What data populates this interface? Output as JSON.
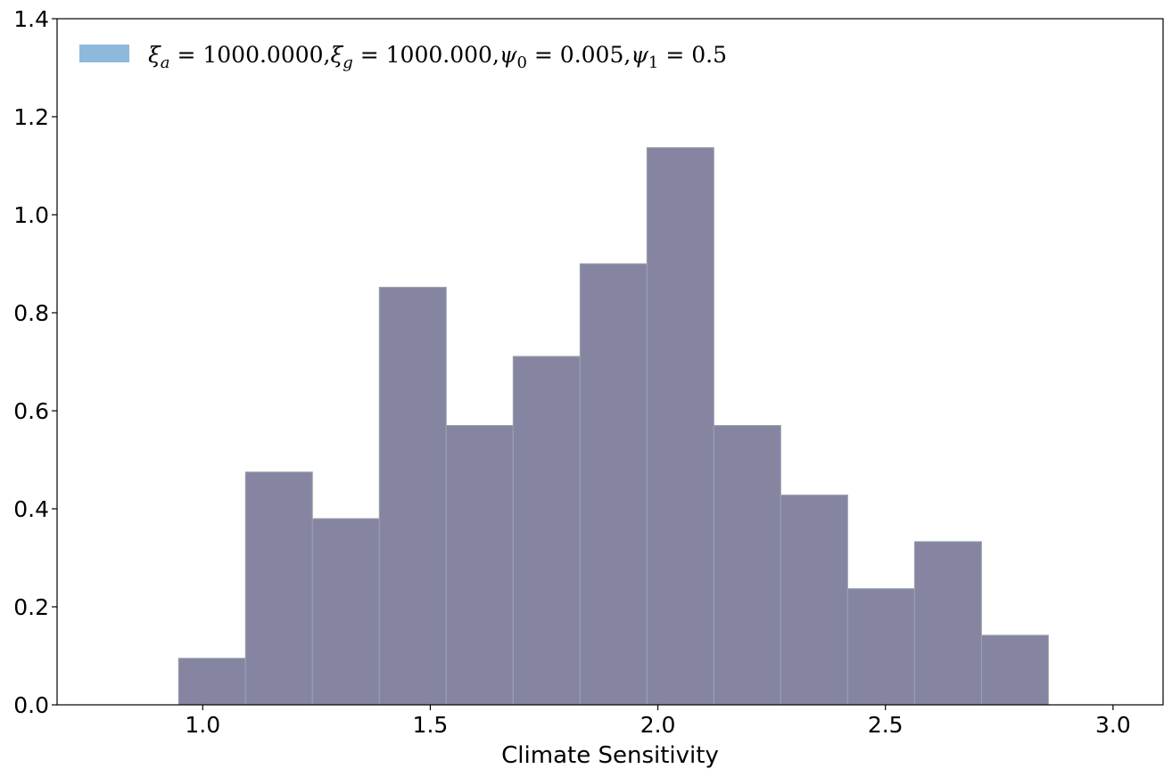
{
  "chart_data": {
    "type": "bar",
    "title": "",
    "xlabel": "Climate Sensitivity",
    "ylabel": "",
    "xlim": [
      0.68,
      3.11
    ],
    "ylim": [
      0,
      1.4
    ],
    "xticks": [
      "1.0",
      "1.5",
      "2.0",
      "2.5",
      "3.0"
    ],
    "yticks": [
      "0.0",
      "0.2",
      "0.4",
      "0.6",
      "0.8",
      "1.0",
      "1.2",
      "1.4"
    ],
    "bins": [
      {
        "x0": 0.947,
        "x1": 1.094,
        "value": 0.095
      },
      {
        "x0": 1.094,
        "x1": 1.241,
        "value": 0.475
      },
      {
        "x0": 1.241,
        "x1": 1.388,
        "value": 0.38
      },
      {
        "x0": 1.388,
        "x1": 1.535,
        "value": 0.852
      },
      {
        "x0": 1.535,
        "x1": 1.682,
        "value": 0.57
      },
      {
        "x0": 1.682,
        "x1": 1.829,
        "value": 0.711
      },
      {
        "x0": 1.829,
        "x1": 1.976,
        "value": 0.9
      },
      {
        "x0": 1.976,
        "x1": 2.123,
        "value": 1.137
      },
      {
        "x0": 2.123,
        "x1": 2.27,
        "value": 0.57
      },
      {
        "x0": 2.27,
        "x1": 2.417,
        "value": 0.428
      },
      {
        "x0": 2.417,
        "x1": 2.564,
        "value": 0.237
      },
      {
        "x0": 2.564,
        "x1": 2.711,
        "value": 0.333
      },
      {
        "x0": 2.711,
        "x1": 2.858,
        "value": 0.142
      }
    ],
    "bar_color": "#8585a2",
    "bar_edge_color": "#9aa3ad",
    "grid": false,
    "legend": {
      "placement": "top-left",
      "swatch_color": "#8fb9da",
      "label": "ξa = 1000.0000,ξg = 1000.000,ψ0 = 0.005,ψ1 = 0.5",
      "parts": [
        {
          "sym": "ξ",
          "sub": "a",
          "val": " = 1000.0000,"
        },
        {
          "sym": "ξ",
          "sub": "g",
          "val": " = 1000.000,"
        },
        {
          "sym": "ψ",
          "sub": "0",
          "val": " = 0.005,"
        },
        {
          "sym": "ψ",
          "sub": "1",
          "val": " = 0.5"
        }
      ]
    }
  }
}
